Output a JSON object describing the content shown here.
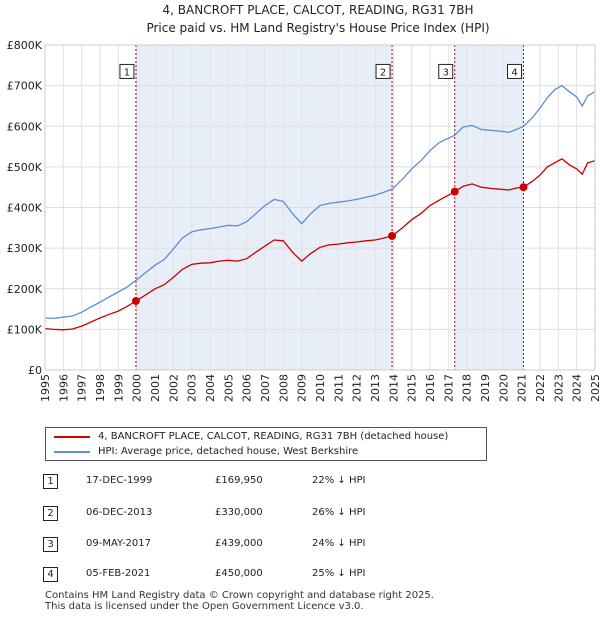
{
  "chart_data": {
    "type": "line",
    "title": "4, BANCROFT PLACE, CALCOT, READING, RG31 7BH",
    "subtitle": "Price paid vs. HM Land Registry's House Price Index (HPI)",
    "x_range": [
      1995,
      2025
    ],
    "ylim": [
      0,
      800000
    ],
    "y_ticks": [
      {
        "value": 0,
        "label": "£0"
      },
      {
        "value": 100000,
        "label": "£100K"
      },
      {
        "value": 200000,
        "label": "£200K"
      },
      {
        "value": 300000,
        "label": "£300K"
      },
      {
        "value": 400000,
        "label": "£400K"
      },
      {
        "value": 500000,
        "label": "£500K"
      },
      {
        "value": 600000,
        "label": "£600K"
      },
      {
        "value": 700000,
        "label": "£700K"
      },
      {
        "value": 800000,
        "label": "£800K"
      }
    ],
    "x_ticks": [
      "1995",
      "1996",
      "1997",
      "1998",
      "1999",
      "2000",
      "2001",
      "2002",
      "2003",
      "2004",
      "2005",
      "2006",
      "2007",
      "2008",
      "2009",
      "2010",
      "2011",
      "2012",
      "2013",
      "2014",
      "2015",
      "2016",
      "2017",
      "2018",
      "2019",
      "2020",
      "2021",
      "2022",
      "2023",
      "2024",
      "2025"
    ],
    "series": [
      {
        "name": "4, BANCROFT PLACE, CALCOT, READING, RG31 7BH (detached house)",
        "color": "#cc0000",
        "points": [
          [
            1995.0,
            102000
          ],
          [
            1995.5,
            100000
          ],
          [
            1996.0,
            99000
          ],
          [
            1996.5,
            101000
          ],
          [
            1997.0,
            108000
          ],
          [
            1997.5,
            118000
          ],
          [
            1998.0,
            128000
          ],
          [
            1998.5,
            137000
          ],
          [
            1999.0,
            145000
          ],
          [
            1999.5,
            157000
          ],
          [
            1999.96,
            169950
          ],
          [
            2000.5,
            185000
          ],
          [
            2001.0,
            200000
          ],
          [
            2001.5,
            210000
          ],
          [
            2002.0,
            228000
          ],
          [
            2002.5,
            248000
          ],
          [
            2003.0,
            260000
          ],
          [
            2003.5,
            263000
          ],
          [
            2004.0,
            264000
          ],
          [
            2004.5,
            268000
          ],
          [
            2005.0,
            270000
          ],
          [
            2005.5,
            268000
          ],
          [
            2006.0,
            274000
          ],
          [
            2006.5,
            290000
          ],
          [
            2007.0,
            305000
          ],
          [
            2007.5,
            320000
          ],
          [
            2008.0,
            318000
          ],
          [
            2008.5,
            290000
          ],
          [
            2009.0,
            268000
          ],
          [
            2009.5,
            287000
          ],
          [
            2010.0,
            302000
          ],
          [
            2010.5,
            308000
          ],
          [
            2011.0,
            310000
          ],
          [
            2011.5,
            313000
          ],
          [
            2012.0,
            315000
          ],
          [
            2012.5,
            318000
          ],
          [
            2013.0,
            320000
          ],
          [
            2013.5,
            325000
          ],
          [
            2013.93,
            330000
          ],
          [
            2014.5,
            350000
          ],
          [
            2015.0,
            370000
          ],
          [
            2015.5,
            385000
          ],
          [
            2016.0,
            405000
          ],
          [
            2016.5,
            418000
          ],
          [
            2017.35,
            439000
          ],
          [
            2017.8,
            452000
          ],
          [
            2018.3,
            458000
          ],
          [
            2018.8,
            450000
          ],
          [
            2019.3,
            447000
          ],
          [
            2019.8,
            445000
          ],
          [
            2020.3,
            443000
          ],
          [
            2020.7,
            448000
          ],
          [
            2021.1,
            450000
          ],
          [
            2021.6,
            465000
          ],
          [
            2022.0,
            480000
          ],
          [
            2022.4,
            500000
          ],
          [
            2022.8,
            510000
          ],
          [
            2023.2,
            520000
          ],
          [
            2023.6,
            505000
          ],
          [
            2024.0,
            495000
          ],
          [
            2024.3,
            482000
          ],
          [
            2024.6,
            510000
          ],
          [
            2025.0,
            515000
          ]
        ]
      },
      {
        "name": "HPI: Average price, detached house, West Berkshire",
        "color": "#5b8fcf",
        "points": [
          [
            1995.0,
            128000
          ],
          [
            1995.5,
            127000
          ],
          [
            1996.0,
            130000
          ],
          [
            1996.5,
            133000
          ],
          [
            1997.0,
            142000
          ],
          [
            1997.5,
            155000
          ],
          [
            1998.0,
            167000
          ],
          [
            1998.5,
            180000
          ],
          [
            1999.0,
            192000
          ],
          [
            1999.5,
            205000
          ],
          [
            2000.0,
            222000
          ],
          [
            2000.5,
            240000
          ],
          [
            2001.0,
            258000
          ],
          [
            2001.5,
            272000
          ],
          [
            2002.0,
            298000
          ],
          [
            2002.5,
            325000
          ],
          [
            2003.0,
            340000
          ],
          [
            2003.5,
            345000
          ],
          [
            2004.0,
            348000
          ],
          [
            2004.5,
            352000
          ],
          [
            2005.0,
            356000
          ],
          [
            2005.5,
            355000
          ],
          [
            2006.0,
            365000
          ],
          [
            2006.5,
            385000
          ],
          [
            2007.0,
            405000
          ],
          [
            2007.5,
            420000
          ],
          [
            2008.0,
            415000
          ],
          [
            2008.5,
            385000
          ],
          [
            2009.0,
            360000
          ],
          [
            2009.5,
            385000
          ],
          [
            2010.0,
            405000
          ],
          [
            2010.5,
            410000
          ],
          [
            2011.0,
            413000
          ],
          [
            2011.5,
            416000
          ],
          [
            2012.0,
            420000
          ],
          [
            2012.5,
            425000
          ],
          [
            2013.0,
            430000
          ],
          [
            2013.5,
            438000
          ],
          [
            2013.93,
            445000
          ],
          [
            2014.5,
            470000
          ],
          [
            2015.0,
            495000
          ],
          [
            2015.5,
            515000
          ],
          [
            2016.0,
            540000
          ],
          [
            2016.5,
            560000
          ],
          [
            2017.35,
            578000
          ],
          [
            2017.8,
            598000
          ],
          [
            2018.3,
            602000
          ],
          [
            2018.8,
            592000
          ],
          [
            2019.3,
            590000
          ],
          [
            2019.8,
            588000
          ],
          [
            2020.3,
            585000
          ],
          [
            2020.7,
            592000
          ],
          [
            2021.1,
            600000
          ],
          [
            2021.6,
            622000
          ],
          [
            2022.0,
            645000
          ],
          [
            2022.4,
            670000
          ],
          [
            2022.8,
            690000
          ],
          [
            2023.2,
            700000
          ],
          [
            2023.6,
            685000
          ],
          [
            2024.0,
            672000
          ],
          [
            2024.3,
            650000
          ],
          [
            2024.6,
            675000
          ],
          [
            2025.0,
            685000
          ]
        ]
      }
    ],
    "shaded_periods": [
      [
        1999.96,
        2013.93
      ],
      [
        2017.35,
        2021.1
      ]
    ],
    "sale_markers": [
      {
        "label": "1",
        "x": 1999.96,
        "y": 169950
      },
      {
        "label": "2",
        "x": 2013.93,
        "y": 330000
      },
      {
        "label": "3",
        "x": 2017.35,
        "y": 439000
      },
      {
        "label": "4",
        "x": 2021.1,
        "y": 450000
      }
    ],
    "marker_box_value": 730000,
    "hatched_from": 2024.95
  },
  "legend": [
    {
      "label": "4, BANCROFT PLACE, CALCOT, READING, RG31 7BH (detached house)",
      "color": "#cc0000"
    },
    {
      "label": "HPI: Average price, detached house, West Berkshire",
      "color": "#5b8fcf"
    }
  ],
  "sales": [
    {
      "num": "1",
      "date": "17-DEC-1999",
      "price": "£169,950",
      "hpi": "22% ↓ HPI"
    },
    {
      "num": "2",
      "date": "06-DEC-2013",
      "price": "£330,000",
      "hpi": "26% ↓ HPI"
    },
    {
      "num": "3",
      "date": "09-MAY-2017",
      "price": "£439,000",
      "hpi": "24% ↓ HPI"
    },
    {
      "num": "4",
      "date": "05-FEB-2021",
      "price": "£450,000",
      "hpi": "25% ↓ HPI"
    }
  ],
  "footer": {
    "line1": "Contains HM Land Registry data © Crown copyright and database right 2025.",
    "line2": "This data is licensed under the Open Government Licence v3.0."
  }
}
